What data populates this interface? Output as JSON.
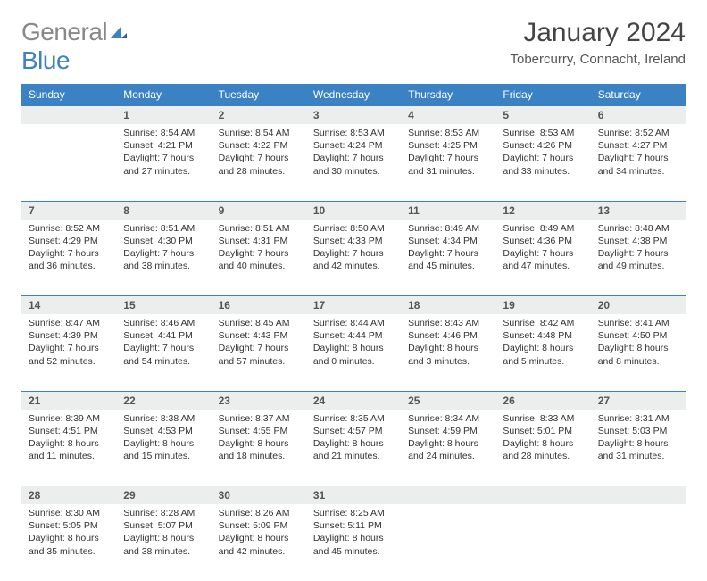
{
  "logo": {
    "part1": "General",
    "part2": "Blue"
  },
  "title": "January 2024",
  "location": "Tobercurry, Connacht, Ireland",
  "colors": {
    "header_bg": "#3b82c4",
    "header_fg": "#ffffff",
    "daynum_bg": "#eceded",
    "border": "#3b82c4",
    "logo_gray": "#888888",
    "logo_blue": "#3b82c4"
  },
  "daysOfWeek": [
    "Sunday",
    "Monday",
    "Tuesday",
    "Wednesday",
    "Thursday",
    "Friday",
    "Saturday"
  ],
  "weeks": [
    [
      null,
      {
        "n": "1",
        "sr": "Sunrise: 8:54 AM",
        "ss": "Sunset: 4:21 PM",
        "d1": "Daylight: 7 hours",
        "d2": "and 27 minutes."
      },
      {
        "n": "2",
        "sr": "Sunrise: 8:54 AM",
        "ss": "Sunset: 4:22 PM",
        "d1": "Daylight: 7 hours",
        "d2": "and 28 minutes."
      },
      {
        "n": "3",
        "sr": "Sunrise: 8:53 AM",
        "ss": "Sunset: 4:24 PM",
        "d1": "Daylight: 7 hours",
        "d2": "and 30 minutes."
      },
      {
        "n": "4",
        "sr": "Sunrise: 8:53 AM",
        "ss": "Sunset: 4:25 PM",
        "d1": "Daylight: 7 hours",
        "d2": "and 31 minutes."
      },
      {
        "n": "5",
        "sr": "Sunrise: 8:53 AM",
        "ss": "Sunset: 4:26 PM",
        "d1": "Daylight: 7 hours",
        "d2": "and 33 minutes."
      },
      {
        "n": "6",
        "sr": "Sunrise: 8:52 AM",
        "ss": "Sunset: 4:27 PM",
        "d1": "Daylight: 7 hours",
        "d2": "and 34 minutes."
      }
    ],
    [
      {
        "n": "7",
        "sr": "Sunrise: 8:52 AM",
        "ss": "Sunset: 4:29 PM",
        "d1": "Daylight: 7 hours",
        "d2": "and 36 minutes."
      },
      {
        "n": "8",
        "sr": "Sunrise: 8:51 AM",
        "ss": "Sunset: 4:30 PM",
        "d1": "Daylight: 7 hours",
        "d2": "and 38 minutes."
      },
      {
        "n": "9",
        "sr": "Sunrise: 8:51 AM",
        "ss": "Sunset: 4:31 PM",
        "d1": "Daylight: 7 hours",
        "d2": "and 40 minutes."
      },
      {
        "n": "10",
        "sr": "Sunrise: 8:50 AM",
        "ss": "Sunset: 4:33 PM",
        "d1": "Daylight: 7 hours",
        "d2": "and 42 minutes."
      },
      {
        "n": "11",
        "sr": "Sunrise: 8:49 AM",
        "ss": "Sunset: 4:34 PM",
        "d1": "Daylight: 7 hours",
        "d2": "and 45 minutes."
      },
      {
        "n": "12",
        "sr": "Sunrise: 8:49 AM",
        "ss": "Sunset: 4:36 PM",
        "d1": "Daylight: 7 hours",
        "d2": "and 47 minutes."
      },
      {
        "n": "13",
        "sr": "Sunrise: 8:48 AM",
        "ss": "Sunset: 4:38 PM",
        "d1": "Daylight: 7 hours",
        "d2": "and 49 minutes."
      }
    ],
    [
      {
        "n": "14",
        "sr": "Sunrise: 8:47 AM",
        "ss": "Sunset: 4:39 PM",
        "d1": "Daylight: 7 hours",
        "d2": "and 52 minutes."
      },
      {
        "n": "15",
        "sr": "Sunrise: 8:46 AM",
        "ss": "Sunset: 4:41 PM",
        "d1": "Daylight: 7 hours",
        "d2": "and 54 minutes."
      },
      {
        "n": "16",
        "sr": "Sunrise: 8:45 AM",
        "ss": "Sunset: 4:43 PM",
        "d1": "Daylight: 7 hours",
        "d2": "and 57 minutes."
      },
      {
        "n": "17",
        "sr": "Sunrise: 8:44 AM",
        "ss": "Sunset: 4:44 PM",
        "d1": "Daylight: 8 hours",
        "d2": "and 0 minutes."
      },
      {
        "n": "18",
        "sr": "Sunrise: 8:43 AM",
        "ss": "Sunset: 4:46 PM",
        "d1": "Daylight: 8 hours",
        "d2": "and 3 minutes."
      },
      {
        "n": "19",
        "sr": "Sunrise: 8:42 AM",
        "ss": "Sunset: 4:48 PM",
        "d1": "Daylight: 8 hours",
        "d2": "and 5 minutes."
      },
      {
        "n": "20",
        "sr": "Sunrise: 8:41 AM",
        "ss": "Sunset: 4:50 PM",
        "d1": "Daylight: 8 hours",
        "d2": "and 8 minutes."
      }
    ],
    [
      {
        "n": "21",
        "sr": "Sunrise: 8:39 AM",
        "ss": "Sunset: 4:51 PM",
        "d1": "Daylight: 8 hours",
        "d2": "and 11 minutes."
      },
      {
        "n": "22",
        "sr": "Sunrise: 8:38 AM",
        "ss": "Sunset: 4:53 PM",
        "d1": "Daylight: 8 hours",
        "d2": "and 15 minutes."
      },
      {
        "n": "23",
        "sr": "Sunrise: 8:37 AM",
        "ss": "Sunset: 4:55 PM",
        "d1": "Daylight: 8 hours",
        "d2": "and 18 minutes."
      },
      {
        "n": "24",
        "sr": "Sunrise: 8:35 AM",
        "ss": "Sunset: 4:57 PM",
        "d1": "Daylight: 8 hours",
        "d2": "and 21 minutes."
      },
      {
        "n": "25",
        "sr": "Sunrise: 8:34 AM",
        "ss": "Sunset: 4:59 PM",
        "d1": "Daylight: 8 hours",
        "d2": "and 24 minutes."
      },
      {
        "n": "26",
        "sr": "Sunrise: 8:33 AM",
        "ss": "Sunset: 5:01 PM",
        "d1": "Daylight: 8 hours",
        "d2": "and 28 minutes."
      },
      {
        "n": "27",
        "sr": "Sunrise: 8:31 AM",
        "ss": "Sunset: 5:03 PM",
        "d1": "Daylight: 8 hours",
        "d2": "and 31 minutes."
      }
    ],
    [
      {
        "n": "28",
        "sr": "Sunrise: 8:30 AM",
        "ss": "Sunset: 5:05 PM",
        "d1": "Daylight: 8 hours",
        "d2": "and 35 minutes."
      },
      {
        "n": "29",
        "sr": "Sunrise: 8:28 AM",
        "ss": "Sunset: 5:07 PM",
        "d1": "Daylight: 8 hours",
        "d2": "and 38 minutes."
      },
      {
        "n": "30",
        "sr": "Sunrise: 8:26 AM",
        "ss": "Sunset: 5:09 PM",
        "d1": "Daylight: 8 hours",
        "d2": "and 42 minutes."
      },
      {
        "n": "31",
        "sr": "Sunrise: 8:25 AM",
        "ss": "Sunset: 5:11 PM",
        "d1": "Daylight: 8 hours",
        "d2": "and 45 minutes."
      },
      null,
      null,
      null
    ]
  ]
}
